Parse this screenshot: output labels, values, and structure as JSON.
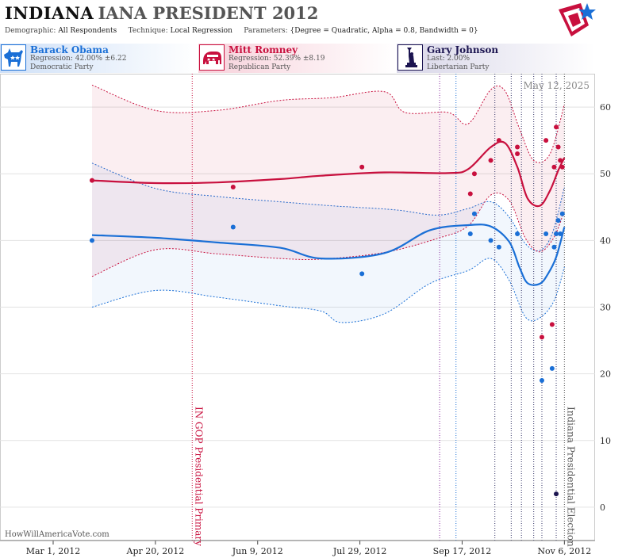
{
  "header": {
    "state": "INDIANA",
    "race": "IANA PRESIDENT 2012",
    "demographic_label": "Demographic:",
    "demographic_value": "All Respondents",
    "technique_label": "Technique:",
    "technique_value": "Local Regression",
    "parameters_label": "Parameters:",
    "parameters_value": "{Degree = Quadratic, Alpha = 0.8, Bandwidth = 0}"
  },
  "candidates": [
    {
      "name": "Barack Obama",
      "line2": "Regression: 42.00% ±6.22",
      "line3": "Democratic Party",
      "color": "#1a6fd6",
      "icon": "donkey-icon"
    },
    {
      "name": "Mitt Romney",
      "line2": "Regression: 52.39% ±8.19",
      "line3": "Republican Party",
      "color": "#c8103e",
      "icon": "elephant-icon"
    },
    {
      "name": "Gary Johnson",
      "line2": "Last: 2.00%",
      "line3": "Libertarian Party",
      "color": "#1b1450",
      "icon": "statue-of-liberty-icon"
    }
  ],
  "site": "HowWillAmericaVote.com",
  "chart_data": {
    "type": "line",
    "date_label": "May 12, 2025",
    "x_ticks": [
      {
        "date": "2012-03-01",
        "label": "Mar 1, 2012"
      },
      {
        "date": "2012-04-20",
        "label": "Apr 20, 2012"
      },
      {
        "date": "2012-06-09",
        "label": "Jun 9, 2012"
      },
      {
        "date": "2012-07-29",
        "label": "Jul 29, 2012"
      },
      {
        "date": "2012-09-17",
        "label": "Sep 17, 2012"
      },
      {
        "date": "2012-11-06",
        "label": "Nov 6, 2012"
      }
    ],
    "xlim": [
      "2012-02-04",
      "2012-11-21"
    ],
    "ylim": [
      -5,
      65
    ],
    "y_ticks": [
      0,
      10,
      20,
      30,
      40,
      50,
      60
    ],
    "events": [
      {
        "date": "2012-05-08",
        "label": "IN GOP Presidential Primary",
        "color": "#c8103e"
      },
      {
        "date": "2012-11-06",
        "label": "Indiana Presidential Election",
        "color": "#555555"
      }
    ],
    "markers": [
      {
        "date": "2012-09-06",
        "color": "#8a2ca0"
      },
      {
        "date": "2012-09-14",
        "color": "#1a6fd6"
      },
      {
        "date": "2012-10-03",
        "color": "#333366"
      },
      {
        "date": "2012-10-11",
        "color": "#333366"
      },
      {
        "date": "2012-10-16",
        "color": "#333366"
      },
      {
        "date": "2012-10-22",
        "color": "#333366"
      },
      {
        "date": "2012-10-26",
        "color": "#333366"
      },
      {
        "date": "2012-11-02",
        "color": "#333366"
      }
    ],
    "series": [
      {
        "name": "Barack Obama",
        "color": "#1a6fd6",
        "points": [
          [
            "2012-03-20",
            40
          ],
          [
            "2012-05-28",
            42
          ],
          [
            "2012-07-30",
            35
          ],
          [
            "2012-09-21",
            41
          ],
          [
            "2012-09-23",
            44
          ],
          [
            "2012-10-01",
            40
          ],
          [
            "2012-10-05",
            39
          ],
          [
            "2012-10-14",
            41
          ],
          [
            "2012-10-26",
            19
          ],
          [
            "2012-10-28",
            41
          ],
          [
            "2012-10-31",
            20.8
          ],
          [
            "2012-11-01",
            39
          ],
          [
            "2012-11-02",
            41
          ],
          [
            "2012-11-03",
            43
          ],
          [
            "2012-11-04",
            41
          ],
          [
            "2012-11-05",
            44
          ]
        ],
        "trend": [
          [
            "2012-03-20",
            40.8
          ],
          [
            "2012-04-20",
            40.4
          ],
          [
            "2012-05-20",
            39.7
          ],
          [
            "2012-06-20",
            38.9
          ],
          [
            "2012-07-10",
            37.3
          ],
          [
            "2012-08-10",
            38.1
          ],
          [
            "2012-09-01",
            41.5
          ],
          [
            "2012-09-20",
            42.3
          ],
          [
            "2012-10-01",
            42.1
          ],
          [
            "2012-10-10",
            39.8
          ],
          [
            "2012-10-15",
            36
          ],
          [
            "2012-10-19",
            33.6
          ],
          [
            "2012-10-25",
            33.5
          ],
          [
            "2012-10-29",
            35
          ],
          [
            "2012-11-02",
            37.5
          ],
          [
            "2012-11-06",
            42
          ]
        ],
        "band_high": [
          [
            "2012-03-20",
            51.6
          ],
          [
            "2012-04-20",
            47.8
          ],
          [
            "2012-05-20",
            46.6
          ],
          [
            "2012-06-20",
            45.8
          ],
          [
            "2012-07-15",
            45.2
          ],
          [
            "2012-08-15",
            44.6
          ],
          [
            "2012-09-05",
            43.8
          ],
          [
            "2012-09-20",
            44.8
          ],
          [
            "2012-10-01",
            45.8
          ],
          [
            "2012-10-10",
            43.5
          ],
          [
            "2012-10-18",
            39.5
          ],
          [
            "2012-10-25",
            38.5
          ],
          [
            "2012-10-31",
            41
          ],
          [
            "2012-11-06",
            48
          ]
        ],
        "band_low": [
          [
            "2012-03-20",
            30
          ],
          [
            "2012-04-20",
            32.5
          ],
          [
            "2012-05-20",
            31.5
          ],
          [
            "2012-06-20",
            30.2
          ],
          [
            "2012-07-10",
            29.4
          ],
          [
            "2012-07-20",
            27.7
          ],
          [
            "2012-08-10",
            29
          ],
          [
            "2012-09-01",
            33.5
          ],
          [
            "2012-09-20",
            35.5
          ],
          [
            "2012-10-01",
            37.3
          ],
          [
            "2012-10-10",
            34
          ],
          [
            "2012-10-18",
            28.5
          ],
          [
            "2012-10-25",
            28.4
          ],
          [
            "2012-11-01",
            31
          ],
          [
            "2012-11-06",
            36
          ]
        ]
      },
      {
        "name": "Mitt Romney",
        "color": "#c8103e",
        "points": [
          [
            "2012-03-20",
            49
          ],
          [
            "2012-05-28",
            48
          ],
          [
            "2012-07-30",
            51
          ],
          [
            "2012-09-21",
            47
          ],
          [
            "2012-09-23",
            50
          ],
          [
            "2012-10-01",
            52
          ],
          [
            "2012-10-05",
            55
          ],
          [
            "2012-10-14",
            54
          ],
          [
            "2012-10-14",
            53
          ],
          [
            "2012-10-26",
            25.5
          ],
          [
            "2012-10-28",
            55
          ],
          [
            "2012-10-31",
            27.4
          ],
          [
            "2012-11-01",
            51
          ],
          [
            "2012-11-02",
            57
          ],
          [
            "2012-11-03",
            54
          ],
          [
            "2012-11-04",
            52
          ],
          [
            "2012-11-05",
            51
          ]
        ],
        "trend": [
          [
            "2012-03-20",
            49
          ],
          [
            "2012-04-20",
            48.6
          ],
          [
            "2012-05-20",
            48.7
          ],
          [
            "2012-06-20",
            49.2
          ],
          [
            "2012-07-10",
            49.7
          ],
          [
            "2012-08-10",
            50.2
          ],
          [
            "2012-09-10",
            50.1
          ],
          [
            "2012-09-20",
            50.7
          ],
          [
            "2012-10-01",
            54
          ],
          [
            "2012-10-08",
            54.6
          ],
          [
            "2012-10-14",
            51
          ],
          [
            "2012-10-19",
            46.3
          ],
          [
            "2012-10-25",
            45.2
          ],
          [
            "2012-10-30",
            47.5
          ],
          [
            "2012-11-03",
            50.5
          ],
          [
            "2012-11-06",
            52.4
          ]
        ],
        "band_high": [
          [
            "2012-03-20",
            63.3
          ],
          [
            "2012-04-20",
            59.5
          ],
          [
            "2012-05-20",
            59.5
          ],
          [
            "2012-06-20",
            61
          ],
          [
            "2012-07-15",
            61.4
          ],
          [
            "2012-08-10",
            62.3
          ],
          [
            "2012-08-20",
            59.2
          ],
          [
            "2012-09-10",
            59.2
          ],
          [
            "2012-09-20",
            57.5
          ],
          [
            "2012-10-01",
            62.6
          ],
          [
            "2012-10-08",
            62.4
          ],
          [
            "2012-10-15",
            56.8
          ],
          [
            "2012-10-22",
            52
          ],
          [
            "2012-10-30",
            53
          ],
          [
            "2012-11-06",
            60.4
          ]
        ],
        "band_low": [
          [
            "2012-03-20",
            34.6
          ],
          [
            "2012-04-20",
            38.6
          ],
          [
            "2012-05-20",
            38
          ],
          [
            "2012-06-20",
            37.3
          ],
          [
            "2012-07-10",
            37.2
          ],
          [
            "2012-08-10",
            38.2
          ],
          [
            "2012-09-05",
            40.3
          ],
          [
            "2012-09-20",
            42.2
          ],
          [
            "2012-10-01",
            46.8
          ],
          [
            "2012-10-10",
            46
          ],
          [
            "2012-10-18",
            40.3
          ],
          [
            "2012-10-25",
            38.3
          ],
          [
            "2012-11-01",
            40.5
          ],
          [
            "2012-11-06",
            44.5
          ]
        ]
      },
      {
        "name": "Gary Johnson",
        "color": "#1b1450",
        "points": [
          [
            "2012-11-02",
            2
          ]
        ],
        "trend": [],
        "band_high": [],
        "band_low": []
      }
    ]
  }
}
